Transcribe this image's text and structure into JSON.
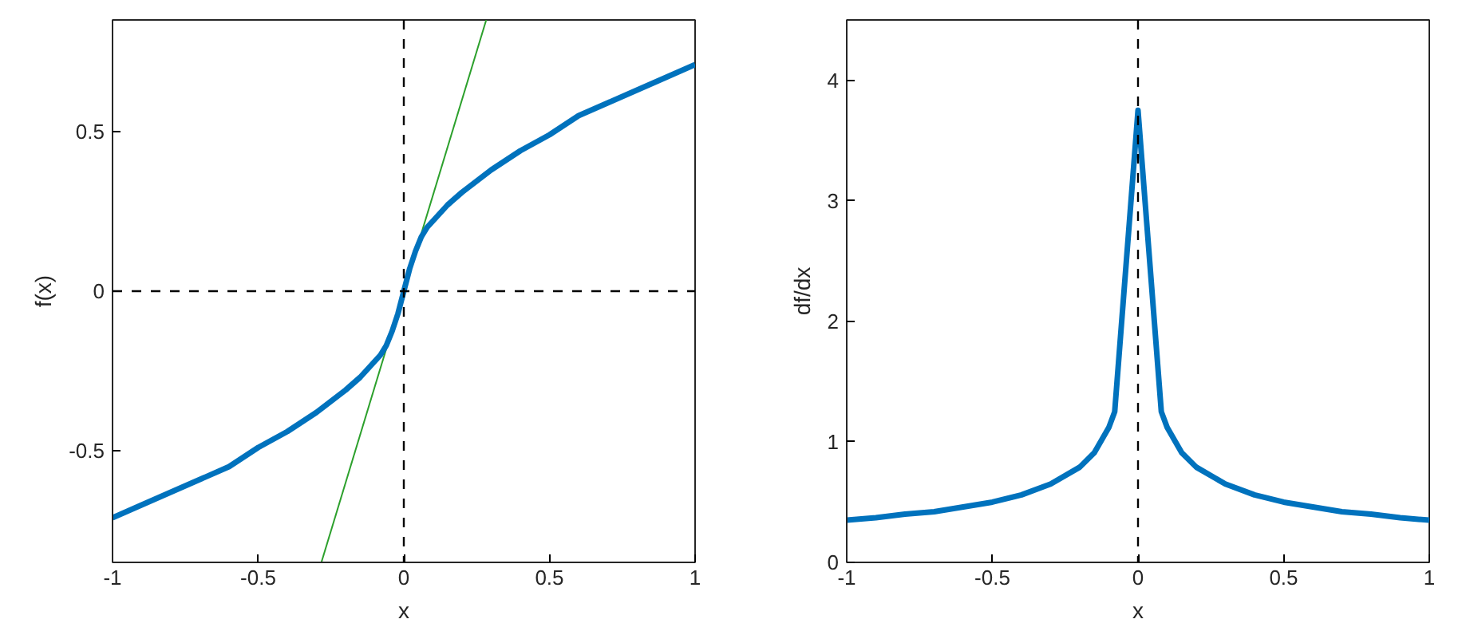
{
  "chart_data": [
    {
      "type": "line",
      "xlabel": "x",
      "ylabel": "f(x)",
      "xlim": [
        -1,
        1
      ],
      "ylim": [
        -0.85,
        0.85
      ],
      "xticks": [
        -1,
        -0.5,
        0,
        0.5,
        1
      ],
      "yticks": [
        -0.5,
        0,
        0.5
      ],
      "grid": false,
      "series": [
        {
          "color": "#2ca02c",
          "x": [
            -0.283,
            0.283
          ],
          "values": [
            -0.85,
            0.85
          ]
        },
        {
          "color": "#0072bd",
          "x": [
            -1,
            -0.9,
            -0.8,
            -0.7,
            -0.6,
            -0.5,
            -0.4,
            -0.3,
            -0.2,
            -0.15,
            -0.1,
            -0.08,
            -0.06,
            -0.04,
            -0.02,
            0,
            0.02,
            0.04,
            0.06,
            0.08,
            0.1,
            0.15,
            0.2,
            0.3,
            0.4,
            0.5,
            0.6,
            0.7,
            0.8,
            0.9,
            1
          ],
          "values": [
            -0.71,
            -0.67,
            -0.63,
            -0.59,
            -0.55,
            -0.49,
            -0.44,
            -0.38,
            -0.31,
            -0.27,
            -0.22,
            -0.2,
            -0.17,
            -0.125,
            -0.07,
            0,
            0.07,
            0.125,
            0.17,
            0.2,
            0.22,
            0.27,
            0.31,
            0.38,
            0.44,
            0.49,
            0.55,
            0.59,
            0.63,
            0.67,
            0.71
          ]
        }
      ],
      "ref_lines": [
        {
          "axis": "x",
          "value": 0,
          "color": "#000000",
          "line_style": "dashed"
        },
        {
          "axis": "y",
          "value": 0,
          "color": "#000000",
          "line_style": "dashed"
        }
      ]
    },
    {
      "type": "line",
      "xlabel": "x",
      "ylabel": "df/dx",
      "xlim": [
        -1,
        1
      ],
      "ylim": [
        0,
        4.5
      ],
      "xticks": [
        -1,
        -0.5,
        0,
        0.5,
        1
      ],
      "yticks": [
        0,
        1,
        2,
        3,
        4
      ],
      "grid": false,
      "series": [
        {
          "color": "#0072bd",
          "x": [
            -1,
            -0.9,
            -0.8,
            -0.7,
            -0.6,
            -0.5,
            -0.4,
            -0.3,
            -0.2,
            -0.15,
            -0.1,
            -0.08,
            0,
            0.08,
            0.1,
            0.15,
            0.2,
            0.3,
            0.4,
            0.5,
            0.6,
            0.7,
            0.8,
            0.9,
            1
          ],
          "values": [
            0.35,
            0.37,
            0.4,
            0.42,
            0.46,
            0.5,
            0.56,
            0.65,
            0.79,
            0.91,
            1.12,
            1.25,
            3.75,
            1.25,
            1.12,
            0.91,
            0.79,
            0.65,
            0.56,
            0.5,
            0.46,
            0.42,
            0.4,
            0.37,
            0.35
          ]
        }
      ],
      "ref_lines": [
        {
          "axis": "x",
          "value": 0,
          "color": "#000000",
          "line_style": "dashed"
        }
      ]
    }
  ]
}
